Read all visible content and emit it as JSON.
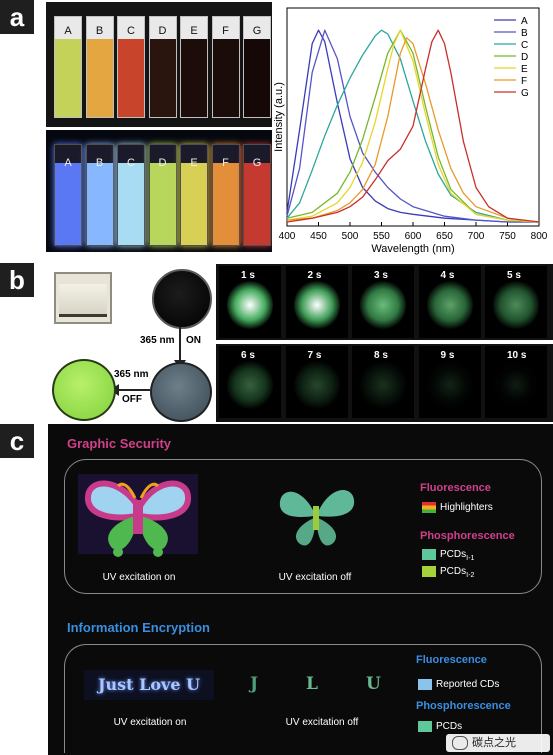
{
  "panels": {
    "a": "a",
    "b": "b",
    "c": "c"
  },
  "vials": {
    "labels": [
      "A",
      "B",
      "C",
      "D",
      "E",
      "F",
      "G"
    ],
    "daylight_colors": [
      "#c5d25a",
      "#e3a640",
      "#c8452c",
      "#2a140e",
      "#1d0d0a",
      "#1a0c09",
      "#150806"
    ],
    "uv_colors": [
      "#5b78f4",
      "#86b7ff",
      "#a8dcf2",
      "#b9d65c",
      "#d8cf55",
      "#e38f3a",
      "#c43a30"
    ]
  },
  "chart_data": {
    "type": "line",
    "xlabel": "Wavelength (nm)",
    "ylabel": "Intensity (a.u.)",
    "xlim": [
      400,
      800
    ],
    "x_ticks": [
      400,
      450,
      500,
      550,
      600,
      650,
      700,
      750,
      800
    ],
    "ylim": [
      0,
      1
    ],
    "legend_position": "top-right",
    "series": [
      {
        "name": "A",
        "color": "#3b3bb8",
        "x": [
          400,
          420,
          440,
          450,
          460,
          480,
          500,
          520,
          540,
          560,
          580,
          600,
          650,
          700,
          750,
          800
        ],
        "y": [
          0.05,
          0.48,
          0.93,
          1.0,
          0.94,
          0.62,
          0.33,
          0.18,
          0.11,
          0.07,
          0.05,
          0.04,
          0.02,
          0.01,
          0.0,
          0.0
        ]
      },
      {
        "name": "B",
        "color": "#5555c8",
        "x": [
          400,
          420,
          440,
          460,
          480,
          500,
          520,
          540,
          560,
          580,
          600,
          650,
          700,
          750,
          800
        ],
        "y": [
          0.03,
          0.28,
          0.78,
          1.0,
          0.85,
          0.55,
          0.36,
          0.26,
          0.18,
          0.12,
          0.08,
          0.03,
          0.01,
          0.0,
          0.0
        ]
      },
      {
        "name": "C",
        "color": "#2aa79c",
        "x": [
          400,
          420,
          440,
          460,
          480,
          500,
          520,
          540,
          550,
          560,
          580,
          600,
          620,
          640,
          660,
          700,
          750,
          800
        ],
        "y": [
          0.02,
          0.1,
          0.27,
          0.45,
          0.61,
          0.75,
          0.87,
          0.97,
          1.0,
          0.98,
          0.85,
          0.63,
          0.42,
          0.25,
          0.14,
          0.05,
          0.01,
          0.0
        ]
      },
      {
        "name": "D",
        "color": "#76b82a",
        "x": [
          400,
          440,
          480,
          500,
          520,
          540,
          560,
          580,
          600,
          620,
          640,
          660,
          700,
          750,
          800
        ],
        "y": [
          0.02,
          0.05,
          0.15,
          0.26,
          0.43,
          0.65,
          0.88,
          1.0,
          0.88,
          0.6,
          0.34,
          0.17,
          0.04,
          0.01,
          0.0
        ]
      },
      {
        "name": "E",
        "color": "#e8d52a",
        "x": [
          400,
          440,
          480,
          500,
          520,
          540,
          560,
          570,
          580,
          600,
          620,
          640,
          660,
          700,
          750,
          800
        ],
        "y": [
          0.01,
          0.03,
          0.1,
          0.18,
          0.31,
          0.52,
          0.8,
          0.93,
          1.0,
          0.84,
          0.56,
          0.3,
          0.15,
          0.04,
          0.01,
          0.0
        ]
      },
      {
        "name": "F",
        "color": "#e89a2a",
        "x": [
          400,
          440,
          480,
          500,
          520,
          540,
          560,
          580,
          590,
          600,
          620,
          640,
          660,
          680,
          700,
          750,
          800
        ],
        "y": [
          0.01,
          0.02,
          0.06,
          0.1,
          0.17,
          0.3,
          0.55,
          0.88,
          0.96,
          0.93,
          0.72,
          0.48,
          0.28,
          0.15,
          0.08,
          0.02,
          0.0
        ]
      },
      {
        "name": "G",
        "color": "#c8302a",
        "x": [
          400,
          440,
          480,
          500,
          520,
          540,
          560,
          580,
          600,
          620,
          630,
          640,
          650,
          660,
          680,
          700,
          720,
          750,
          800
        ],
        "y": [
          0.0,
          0.02,
          0.05,
          0.08,
          0.13,
          0.22,
          0.32,
          0.38,
          0.5,
          0.8,
          0.94,
          1.0,
          0.93,
          0.78,
          0.42,
          0.18,
          0.08,
          0.02,
          0.0
        ]
      }
    ]
  },
  "panel_b": {
    "arrow_label_on": "365 nm",
    "arrow_label_on_state": "ON",
    "arrow_label_off": "365 nm",
    "arrow_label_off_state": "OFF",
    "time_labels": [
      "1 s",
      "2 s",
      "3 s",
      "4 s",
      "5 s",
      "6 s",
      "7 s",
      "8 s",
      "9 s",
      "10 s"
    ],
    "glow_levels": [
      1.0,
      0.92,
      0.72,
      0.6,
      0.5,
      0.32,
      0.2,
      0.11,
      0.05,
      0.02
    ]
  },
  "panel_c": {
    "graphic_security": {
      "title": "Graphic Security",
      "title_color": "#d0408a",
      "caption_on": "UV excitation on",
      "caption_off": "UV excitation off",
      "legend": {
        "fluorescence_head": "Fluorescence",
        "highlighters": "Highlighters",
        "phosphorescence_head": "Phosphorescence",
        "pcd1": "PCDs",
        "pcd1_sub": "Ⅰ-1",
        "pcd2": "PCDs",
        "pcd2_sub": "Ⅰ-2"
      }
    },
    "information_encryption": {
      "title": "Information Encryption",
      "title_color": "#3a8ee0",
      "text_on": "Just Love U",
      "text_off_letters": [
        "J",
        "L",
        "U"
      ],
      "caption_on": "UV excitation on",
      "caption_off": "UV excitation off",
      "legend": {
        "fluorescence_head": "Fluorescence",
        "reported": "Reported CDs",
        "phosphorescence_head": "Phosphorescence",
        "pcds": "PCDs"
      }
    },
    "watermark": "碳点之光"
  }
}
